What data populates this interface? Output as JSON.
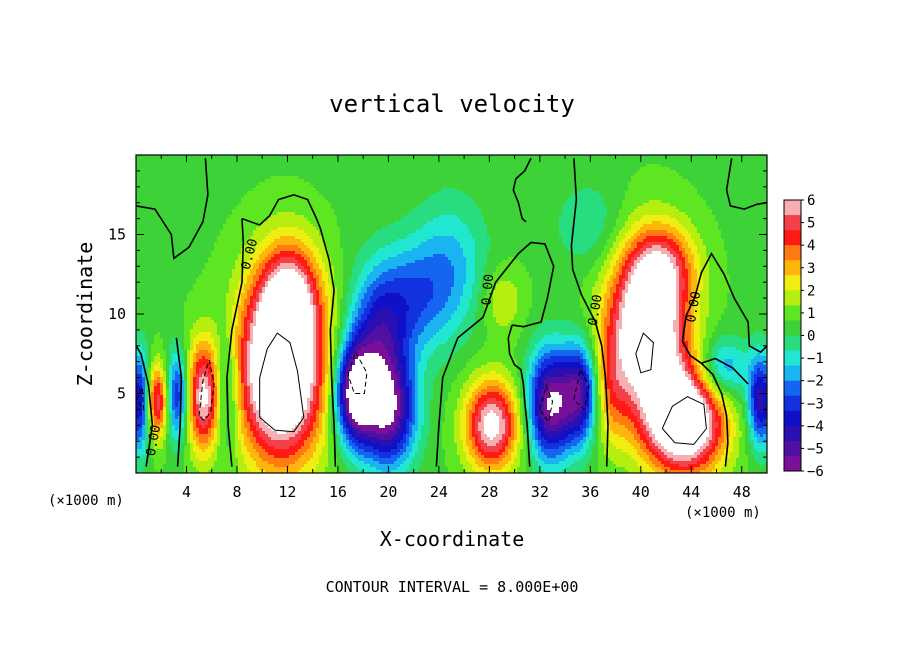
{
  "chart_data": {
    "type": "heatmap",
    "title": "vertical velocity",
    "xlabel": "X-coordinate",
    "ylabel": "Z-coordinate",
    "x_unit_left": "(×1000 m)",
    "x_unit_right": "(×1000 m)",
    "xlim": [
      0,
      50
    ],
    "ylim": [
      0,
      20
    ],
    "x_ticks": [
      "4",
      "8",
      "12",
      "16",
      "20",
      "24",
      "28",
      "32",
      "36",
      "40",
      "44",
      "48"
    ],
    "y_ticks": [
      "5",
      "10",
      "15"
    ],
    "contour_label": "0.00",
    "footer": "CONTOUR INTERVAL = 8.000E+00",
    "colorbar": {
      "ticks": [
        "6",
        "5",
        "4",
        "3",
        "2",
        "1",
        "0",
        "−1",
        "−2",
        "−3",
        "−4",
        "−5",
        "−6"
      ],
      "colors": [
        "#f7aeb0",
        "#f44048",
        "#ff1a14",
        "#ff7a10",
        "#ffb60c",
        "#f0ee10",
        "#b6ee10",
        "#5ee622",
        "#3cd238",
        "#28dc80",
        "#20e6d2",
        "#1ab4f0",
        "#1466f0",
        "#1232e0",
        "#1010c8",
        "#2a10b0",
        "#5210a2",
        "#7a1098"
      ],
      "min": -6,
      "max": 6
    },
    "blobs": [
      {
        "x": 11.5,
        "z": 6.5,
        "sx": 2.4,
        "sz": 4.0,
        "a": 9
      },
      {
        "x": 12.2,
        "z": 11.0,
        "sx": 1.6,
        "sz": 2.5,
        "a": 4
      },
      {
        "x": 40.5,
        "z": 9.0,
        "sx": 2.2,
        "sz": 3.6,
        "a": 8
      },
      {
        "x": 43.5,
        "z": 3.2,
        "sx": 2.2,
        "sz": 2.3,
        "a": 8
      },
      {
        "x": 41.8,
        "z": 13.0,
        "sx": 1.8,
        "sz": 1.8,
        "a": 3
      },
      {
        "x": 5.5,
        "z": 4.8,
        "sx": 1.2,
        "sz": 2.4,
        "a": 6
      },
      {
        "x": 28.2,
        "z": 3.0,
        "sx": 1.5,
        "sz": 2.0,
        "a": 6
      },
      {
        "x": 1.7,
        "z": 4.5,
        "sx": 0.7,
        "sz": 1.7,
        "a": 5
      },
      {
        "x": 37.5,
        "z": 5.0,
        "sx": 1.0,
        "sz": 2.5,
        "a": 2
      },
      {
        "x": 29.0,
        "z": 10.8,
        "sx": 1.2,
        "sz": 1.5,
        "a": 1.5
      },
      {
        "x": 17.3,
        "z": 5.0,
        "sx": 1.1,
        "sz": 2.2,
        "a": -7
      },
      {
        "x": 20.0,
        "z": 3.8,
        "sx": 1.5,
        "sz": 2.4,
        "a": -6
      },
      {
        "x": 19.2,
        "z": 8.5,
        "sx": 1.6,
        "sz": 3.0,
        "a": -4
      },
      {
        "x": 22.0,
        "z": 11.0,
        "sx": 2.0,
        "sz": 2.5,
        "a": -2.5
      },
      {
        "x": 32.8,
        "z": 4.3,
        "sx": 1.2,
        "sz": 2.4,
        "a": -6.5
      },
      {
        "x": 35.2,
        "z": 5.0,
        "sx": 1.0,
        "sz": 2.2,
        "a": -5.5
      },
      {
        "x": 0.3,
        "z": 4.5,
        "sx": 0.6,
        "sz": 2.2,
        "a": -5
      },
      {
        "x": 3.3,
        "z": 4.8,
        "sx": 0.7,
        "sz": 2.0,
        "a": -5
      },
      {
        "x": 7.0,
        "z": 5.0,
        "sx": 0.8,
        "sz": 2.6,
        "a": -4
      },
      {
        "x": 49.5,
        "z": 4.5,
        "sx": 0.7,
        "sz": 2.0,
        "a": -5
      },
      {
        "x": 46.5,
        "z": 6.5,
        "sx": 1.4,
        "sz": 1.4,
        "a": -3
      },
      {
        "x": 25.0,
        "z": 13.0,
        "sx": 2.0,
        "sz": 3.0,
        "a": -2
      },
      {
        "x": 36.0,
        "z": 15.5,
        "sx": 2.0,
        "sz": 2.0,
        "a": -1.2
      }
    ],
    "zero_contours": [
      [
        [
          0.8,
          0.4
        ],
        [
          1.3,
          3
        ],
        [
          1.0,
          5.5
        ],
        [
          0.4,
          7.5
        ],
        [
          0,
          8
        ]
      ],
      [
        [
          3.3,
          0.4
        ],
        [
          3.5,
          3
        ],
        [
          3.6,
          6
        ],
        [
          3.2,
          8.5
        ]
      ],
      [
        [
          7.6,
          0.4
        ],
        [
          7.3,
          3
        ],
        [
          7.2,
          6
        ],
        [
          7.6,
          9
        ],
        [
          8.4,
          12
        ],
        [
          8.5,
          14.5
        ],
        [
          8.4,
          16
        ]
      ],
      [
        [
          0,
          16.8
        ],
        [
          1.5,
          16.6
        ],
        [
          2.8,
          15
        ],
        [
          3.0,
          13.5
        ],
        [
          4.2,
          14.2
        ],
        [
          5.3,
          15.8
        ],
        [
          5.7,
          17.5
        ],
        [
          5.5,
          19.8
        ]
      ],
      [
        [
          8.4,
          16
        ],
        [
          9.8,
          15.6
        ],
        [
          10.6,
          16.2
        ],
        [
          11.3,
          17.2
        ],
        [
          12.5,
          17.5
        ],
        [
          13.6,
          17.2
        ],
        [
          14.3,
          16
        ],
        [
          14.6,
          15.4
        ],
        [
          15.3,
          13.4
        ],
        [
          15.7,
          11.5
        ],
        [
          15.4,
          9
        ],
        [
          15.5,
          6
        ],
        [
          15.7,
          3
        ],
        [
          15.8,
          0.4
        ]
      ],
      [
        [
          23.8,
          0.4
        ],
        [
          24,
          3
        ],
        [
          24.3,
          6
        ],
        [
          25.5,
          8.5
        ],
        [
          27.5,
          9.8
        ],
        [
          28.5,
          12
        ],
        [
          30.3,
          13.8
        ],
        [
          31.3,
          14.5
        ],
        [
          32.4,
          14.4
        ],
        [
          33.1,
          13
        ],
        [
          32.6,
          11
        ],
        [
          32.1,
          9.5
        ],
        [
          30.7,
          9.2
        ],
        [
          29.8,
          9.3
        ]
      ],
      [
        [
          29.8,
          9.3
        ],
        [
          29.5,
          8.5
        ],
        [
          29.6,
          7.5
        ],
        [
          30,
          6.8
        ],
        [
          30.5,
          6.5
        ],
        [
          30.7,
          5.6
        ],
        [
          30.8,
          4.5
        ],
        [
          31,
          3
        ],
        [
          31.2,
          0.4
        ]
      ],
      [
        [
          37.3,
          0.4
        ],
        [
          37.4,
          3
        ],
        [
          37.2,
          6
        ],
        [
          36.9,
          8
        ],
        [
          36.4,
          9.5
        ],
        [
          35.3,
          11.2
        ],
        [
          34.6,
          12.8
        ],
        [
          34.5,
          14.3
        ],
        [
          34.9,
          17.2
        ],
        [
          34.7,
          19.8
        ]
      ],
      [
        [
          31.3,
          19.8
        ],
        [
          30.8,
          19
        ],
        [
          30.1,
          18.5
        ],
        [
          29.9,
          17.8
        ],
        [
          30.3,
          17
        ],
        [
          30.6,
          16
        ],
        [
          30.9,
          15.8
        ]
      ],
      [
        [
          47.2,
          19.8
        ],
        [
          46.8,
          17.8
        ],
        [
          47.1,
          16.8
        ],
        [
          48.2,
          16.6
        ],
        [
          49.2,
          16.9
        ],
        [
          50,
          17
        ]
      ],
      [
        [
          50,
          8
        ],
        [
          49.5,
          7.6
        ],
        [
          48.6,
          8
        ],
        [
          48.5,
          9.5
        ],
        [
          47.4,
          11
        ],
        [
          46.6,
          12.5
        ],
        [
          45.6,
          13.8
        ],
        [
          44.8,
          12.6
        ],
        [
          44.3,
          11.1
        ],
        [
          43.6,
          9.9
        ],
        [
          43.3,
          8.3
        ],
        [
          43.9,
          7.4
        ],
        [
          44.8,
          6.9
        ],
        [
          45.7,
          6.2
        ],
        [
          46.4,
          5
        ],
        [
          46.8,
          3.6
        ],
        [
          46.9,
          1.9
        ],
        [
          46.7,
          0.4
        ]
      ],
      [
        [
          44.8,
          6.9
        ],
        [
          45.9,
          7.2
        ],
        [
          47.3,
          6.6
        ],
        [
          48.5,
          5.6
        ]
      ]
    ],
    "pos_contours": [
      [
        [
          9.8,
          3.5
        ],
        [
          9.8,
          6
        ],
        [
          10.4,
          7.8
        ],
        [
          11.2,
          8.8
        ],
        [
          12.2,
          8.2
        ],
        [
          12.8,
          6.4
        ],
        [
          13.3,
          3.5
        ],
        [
          12.5,
          2.6
        ],
        [
          11,
          2.7
        ],
        [
          9.8,
          3.5
        ]
      ],
      [
        [
          39.6,
          7.5
        ],
        [
          40.2,
          8.8
        ],
        [
          41,
          8.2
        ],
        [
          40.8,
          6.5
        ],
        [
          40,
          6.3
        ],
        [
          39.6,
          7.5
        ]
      ],
      [
        [
          41.7,
          2.8
        ],
        [
          42.5,
          4.2
        ],
        [
          43.7,
          4.8
        ],
        [
          45,
          4.3
        ],
        [
          45.2,
          2.8
        ],
        [
          44.2,
          1.8
        ],
        [
          42.7,
          1.9
        ],
        [
          41.7,
          2.8
        ]
      ]
    ],
    "neg_contours": [
      [
        [
          5.0,
          3.6
        ],
        [
          5.3,
          5.8
        ],
        [
          5.8,
          7.1
        ],
        [
          6.2,
          5.6
        ],
        [
          5.9,
          3.8
        ],
        [
          5.4,
          3.3
        ],
        [
          5.0,
          3.6
        ]
      ],
      [
        [
          16.8,
          6.2
        ],
        [
          17.4,
          7.6
        ],
        [
          18.3,
          6.3
        ],
        [
          18.1,
          5.0
        ],
        [
          17.3,
          5.0
        ],
        [
          16.8,
          6.2
        ]
      ],
      [
        [
          32.0,
          4.0
        ],
        [
          32.5,
          5.5
        ],
        [
          33.0,
          4.5
        ],
        [
          32.7,
          3.2
        ],
        [
          32.0,
          4.0
        ]
      ],
      [
        [
          34.7,
          4.6
        ],
        [
          35.2,
          6.5
        ],
        [
          35.9,
          5.5
        ],
        [
          35.5,
          4.0
        ],
        [
          34.7,
          4.6
        ]
      ],
      [
        [
          0.05,
          4.6
        ],
        [
          0.5,
          5.4
        ],
        [
          0.6,
          4.0
        ],
        [
          0.05,
          4.6
        ]
      ]
    ],
    "contour_label_positions": [
      [
        1.7,
        2.0,
        -80
      ],
      [
        9.3,
        13.7,
        -75
      ],
      [
        28.2,
        11.5,
        -85
      ],
      [
        36.7,
        10.2,
        -80
      ],
      [
        44.5,
        10.4,
        -80
      ]
    ]
  }
}
